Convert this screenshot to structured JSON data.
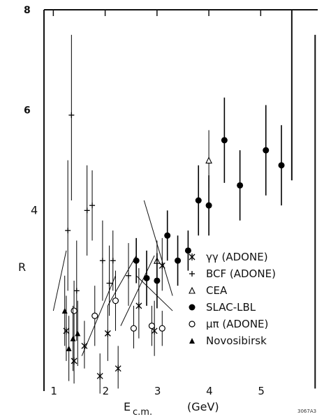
{
  "chart_data": {
    "type": "scatter",
    "xlabel_main": "E",
    "xlabel_sub": "c.m.",
    "xlabel_unit": "(GeV)",
    "ylabel": "R",
    "xlim": [
      0.82,
      6.1
    ],
    "ylim": [
      0.4,
      8.0
    ],
    "x_ticks": [
      1,
      2,
      3,
      4,
      5
    ],
    "x_tick_labels": [
      "1",
      "2",
      "3",
      "4",
      "5"
    ],
    "y_tick_labels": [
      {
        "value": 8,
        "text": "8"
      },
      {
        "value": 6,
        "text": "6"
      },
      {
        "value": 4,
        "text": "4"
      }
    ],
    "corner_code": "3067A3",
    "grid": false,
    "legend_position": "lower-right",
    "series": [
      {
        "name": "γγ (ADONE)",
        "marker": "asterisk",
        "points": [
          {
            "x": 1.25,
            "y": 1.6,
            "lo": 1.0,
            "hi": 2.3
          },
          {
            "x": 1.4,
            "y": 1.0,
            "lo": 0.55,
            "hi": 1.5
          },
          {
            "x": 1.6,
            "y": 1.3,
            "lo": 0.85,
            "hi": 1.8
          },
          {
            "x": 1.9,
            "y": 0.7,
            "lo": 0.35,
            "hi": 1.15
          },
          {
            "x": 2.05,
            "y": 1.55,
            "lo": 1.0,
            "hi": 2.1
          },
          {
            "x": 2.25,
            "y": 0.85,
            "lo": 0.45,
            "hi": 1.3
          },
          {
            "x": 2.65,
            "y": 2.1,
            "lo": 1.45,
            "hi": 2.85
          },
          {
            "x": 2.95,
            "y": 1.6,
            "lo": 1.1,
            "hi": 2.2
          },
          {
            "x": 3.1,
            "y": 2.9,
            "lo": 2.4,
            "hi": 3.45
          }
        ]
      },
      {
        "name": "BCF (ADONE)",
        "marker": "plus",
        "points": [
          {
            "x": 1.28,
            "y": 3.6,
            "lo": 2.4,
            "hi": 5.0
          },
          {
            "x": 1.35,
            "y": 5.9,
            "lo": 4.2,
            "hi": 7.5
          },
          {
            "x": 1.45,
            "y": 2.4,
            "lo": 1.4,
            "hi": 3.4
          },
          {
            "x": 1.65,
            "y": 4.0,
            "lo": 3.1,
            "hi": 4.9
          },
          {
            "x": 1.75,
            "y": 4.1,
            "lo": 3.4,
            "hi": 4.8
          },
          {
            "x": 1.95,
            "y": 3.0,
            "lo": 2.2,
            "hi": 3.8
          },
          {
            "x": 2.08,
            "y": 2.55,
            "lo": 1.9,
            "hi": 3.3
          },
          {
            "x": 2.15,
            "y": 3.0,
            "lo": 2.4,
            "hi": 3.6
          },
          {
            "x": 2.45,
            "y": 2.7,
            "lo": 2.1,
            "hi": 3.35
          }
        ]
      },
      {
        "name": "CEA",
        "marker": "triangle-open",
        "points": [
          {
            "x": 3.0,
            "y": 3.0,
            "lo": 2.6,
            "hi": 3.4
          },
          {
            "x": 4.0,
            "y": 5.0,
            "lo": 4.45,
            "hi": 5.6
          }
        ]
      },
      {
        "name": "SLAC-LBL",
        "marker": "circle-filled",
        "points": [
          {
            "x": 2.6,
            "y": 3.0,
            "lo": 2.55,
            "hi": 3.45
          },
          {
            "x": 2.8,
            "y": 2.65,
            "lo": 2.1,
            "hi": 3.2
          },
          {
            "x": 3.0,
            "y": 2.6,
            "lo": 2.05,
            "hi": 3.15
          },
          {
            "x": 3.2,
            "y": 3.5,
            "lo": 3.0,
            "hi": 4.0
          },
          {
            "x": 3.4,
            "y": 3.0,
            "lo": 2.5,
            "hi": 3.5
          },
          {
            "x": 3.6,
            "y": 3.2,
            "lo": 2.8,
            "hi": 3.6
          },
          {
            "x": 3.8,
            "y": 4.2,
            "lo": 3.5,
            "hi": 4.9
          },
          {
            "x": 4.0,
            "y": 4.1,
            "lo": 3.5,
            "hi": 4.7
          },
          {
            "x": 4.3,
            "y": 5.4,
            "lo": 4.55,
            "hi": 6.25
          },
          {
            "x": 4.6,
            "y": 4.5,
            "lo": 3.8,
            "hi": 5.2
          },
          {
            "x": 5.1,
            "y": 5.2,
            "lo": 4.3,
            "hi": 6.1
          },
          {
            "x": 5.4,
            "y": 4.9,
            "lo": 4.1,
            "hi": 5.7
          }
        ]
      },
      {
        "name": "μπ (ADONE)",
        "marker": "circle-open",
        "points": [
          {
            "x": 1.4,
            "y": 2.0,
            "lo": 1.4,
            "hi": 2.6
          },
          {
            "x": 1.8,
            "y": 1.9,
            "lo": 1.3,
            "hi": 2.5
          },
          {
            "x": 2.2,
            "y": 2.2,
            "lo": 1.6,
            "hi": 2.8
          },
          {
            "x": 2.55,
            "y": 1.65,
            "lo": 1.25,
            "hi": 2.1
          },
          {
            "x": 2.9,
            "y": 1.7,
            "lo": 1.3,
            "hi": 2.1
          },
          {
            "x": 3.1,
            "y": 1.65,
            "lo": 1.3,
            "hi": 2.0
          }
        ]
      },
      {
        "name": "Novosibirsk",
        "marker": "triangle-filled",
        "points": [
          {
            "x": 1.22,
            "y": 2.0,
            "lo": 1.3,
            "hi": 2.7
          },
          {
            "x": 1.3,
            "y": 1.25,
            "lo": 0.6,
            "hi": 1.9
          },
          {
            "x": 1.38,
            "y": 1.45,
            "lo": 0.8,
            "hi": 2.1
          },
          {
            "x": 1.47,
            "y": 1.55,
            "lo": 0.9,
            "hi": 2.2
          }
        ]
      }
    ],
    "band_segments": [
      {
        "x1": 1.0,
        "y1": 2.0,
        "x2": 1.25,
        "y2": 3.2
      },
      {
        "x1": 1.55,
        "y1": 1.1,
        "x2": 2.2,
        "y2": 2.7
      },
      {
        "x1": 2.05,
        "y1": 2.1,
        "x2": 2.6,
        "y2": 3.1
      },
      {
        "x1": 2.3,
        "y1": 1.7,
        "x2": 2.95,
        "y2": 3.1
      },
      {
        "x1": 2.6,
        "y1": 2.7,
        "x2": 3.3,
        "y2": 2.0
      },
      {
        "x1": 2.75,
        "y1": 4.2,
        "x2": 3.3,
        "y2": 2.3
      }
    ],
    "upper_bounds": [
      {
        "x": 5.6,
        "from": 4.6,
        "to": 8.0
      },
      {
        "x": 6.05,
        "from": 0.45,
        "to": 7.5
      }
    ]
  }
}
